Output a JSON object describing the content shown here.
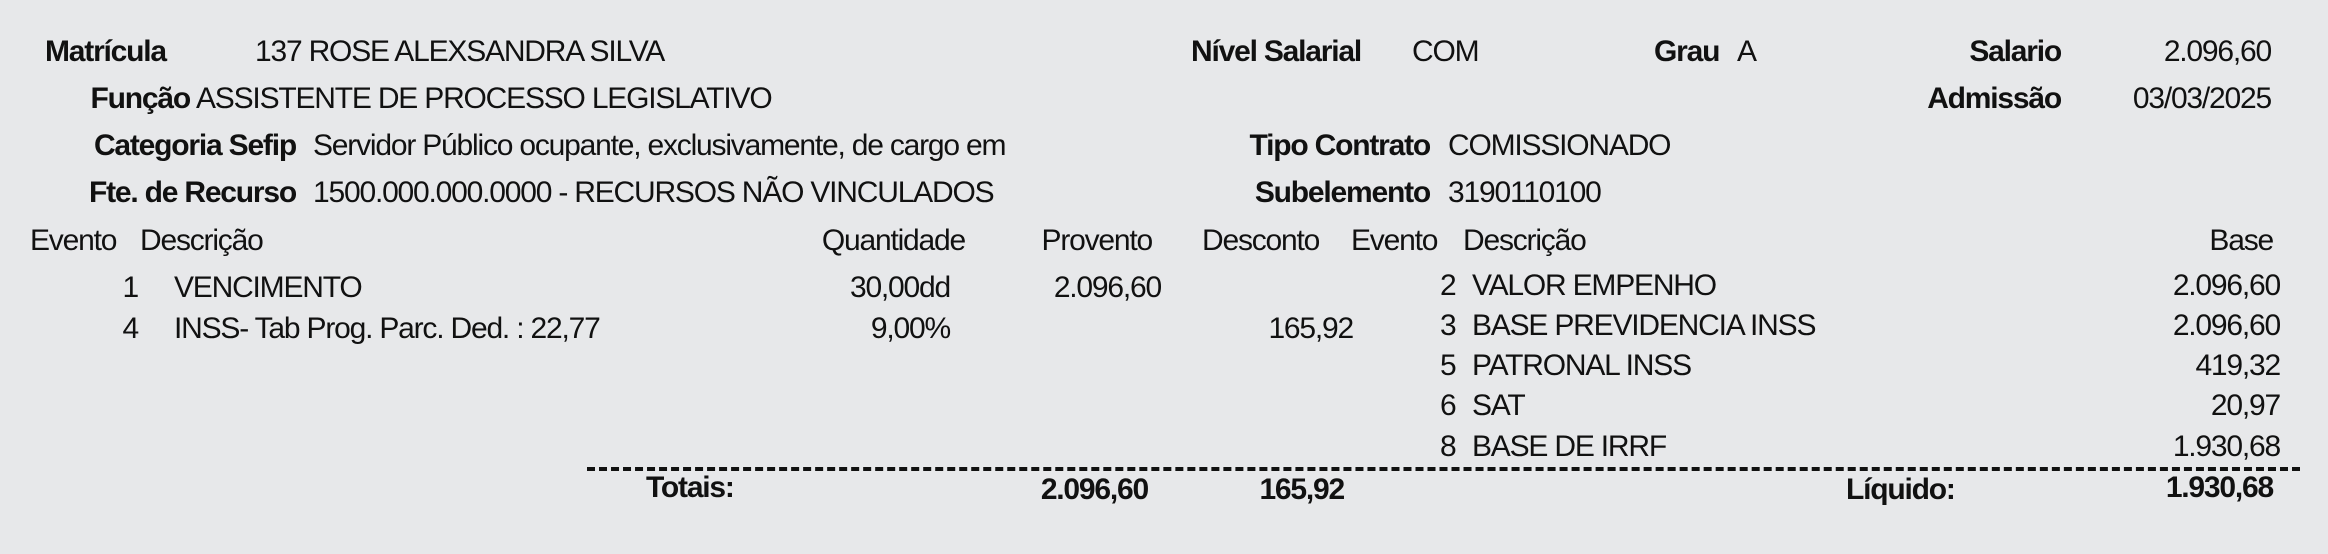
{
  "header": {
    "matricula_label": "Matrícula",
    "matricula_value": "137 ROSE ALEXSANDRA SILVA",
    "nivel_label": "Nível Salarial",
    "nivel_value": "COM",
    "grau_label": "Grau",
    "grau_value": "A",
    "salario_label": "Salario",
    "salario_value": "2.096,60",
    "funcao_label": "Função",
    "funcao_value": "ASSISTENTE DE PROCESSO LEGISLATIVO",
    "admissao_label": "Admissão",
    "admissao_value": "03/03/2025",
    "categoria_label": "Categoria Sefip",
    "categoria_value": "Servidor Público ocupante, exclusivamente, de cargo em",
    "tipo_label": "Tipo Contrato",
    "tipo_value": "COMISSIONADO",
    "fonte_label": "Fte. de Recurso",
    "fonte_value": "1500.000.000.0000 - RECURSOS NÃO VINCULADOS",
    "subelemento_label": "Subelemento",
    "subelemento_value": "3190110100"
  },
  "columns": {
    "evento": "Evento",
    "descricao": "Descrição",
    "quantidade": "Quantidade",
    "provento": "Provento",
    "desconto": "Desconto",
    "evento2": "Evento",
    "descricao2": "Descrição",
    "base": "Base"
  },
  "events": [
    {
      "evento": "1",
      "descricao": "VENCIMENTO",
      "quantidade": "30,00dd",
      "provento": "2.096,60",
      "desconto": ""
    },
    {
      "evento": "4",
      "descricao": "INSS- Tab Prog. Parc. Ded. : 22,77",
      "quantidade": "9,00%",
      "provento": "",
      "desconto": "165,92"
    }
  ],
  "bases": [
    {
      "evento": "2",
      "descricao": "VALOR EMPENHO",
      "base": "2.096,60"
    },
    {
      "evento": "3",
      "descricao": "BASE PREVIDENCIA INSS",
      "base": "2.096,60"
    },
    {
      "evento": "5",
      "descricao": "PATRONAL INSS",
      "base": "419,32"
    },
    {
      "evento": "6",
      "descricao": "SAT",
      "base": "20,97"
    },
    {
      "evento": "8",
      "descricao": "BASE DE IRRF",
      "base": "1.930,68"
    }
  ],
  "totals": {
    "label": "Totais:",
    "proventos": "2.096,60",
    "descontos": "165,92",
    "liquido_label": "Líquido:",
    "liquido": "1.930,68"
  }
}
